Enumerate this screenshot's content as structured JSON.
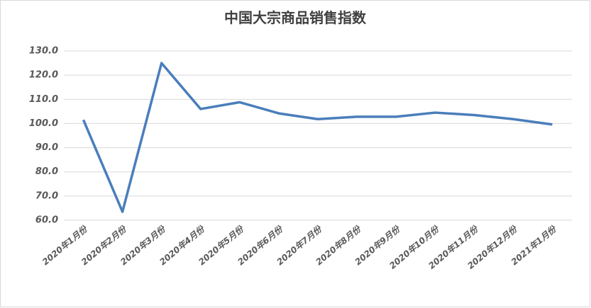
{
  "chart_data": {
    "type": "line",
    "title": "中国大宗商品销售指数",
    "categories": [
      "2020年1月份",
      "2020年2月份",
      "2020年3月份",
      "2020年4月份",
      "2020年5月份",
      "2020年6月份",
      "2020年7月份",
      "2020年8月份",
      "2020年9月份",
      "2020年10月份",
      "2020年11月份",
      "2020年12月份",
      "2021年1月份"
    ],
    "series": [
      {
        "name": "中国大宗商品销售指数",
        "color": "#4a7ebb",
        "values": [
          101.5,
          63.5,
          125.0,
          106.0,
          108.8,
          104.2,
          101.8,
          102.8,
          102.8,
          104.5,
          103.5,
          101.8,
          99.6
        ]
      }
    ],
    "ylim": [
      60,
      130
    ],
    "yticks": [
      {
        "value": 60,
        "label": "60.0"
      },
      {
        "value": 70,
        "label": "70.0"
      },
      {
        "value": 80,
        "label": "80.0"
      },
      {
        "value": 90,
        "label": "90.0"
      },
      {
        "value": 100,
        "label": "100.0"
      },
      {
        "value": 110,
        "label": "110.0"
      },
      {
        "value": 120,
        "label": "120.0"
      },
      {
        "value": 130,
        "label": "130.0"
      }
    ],
    "grid": true
  }
}
